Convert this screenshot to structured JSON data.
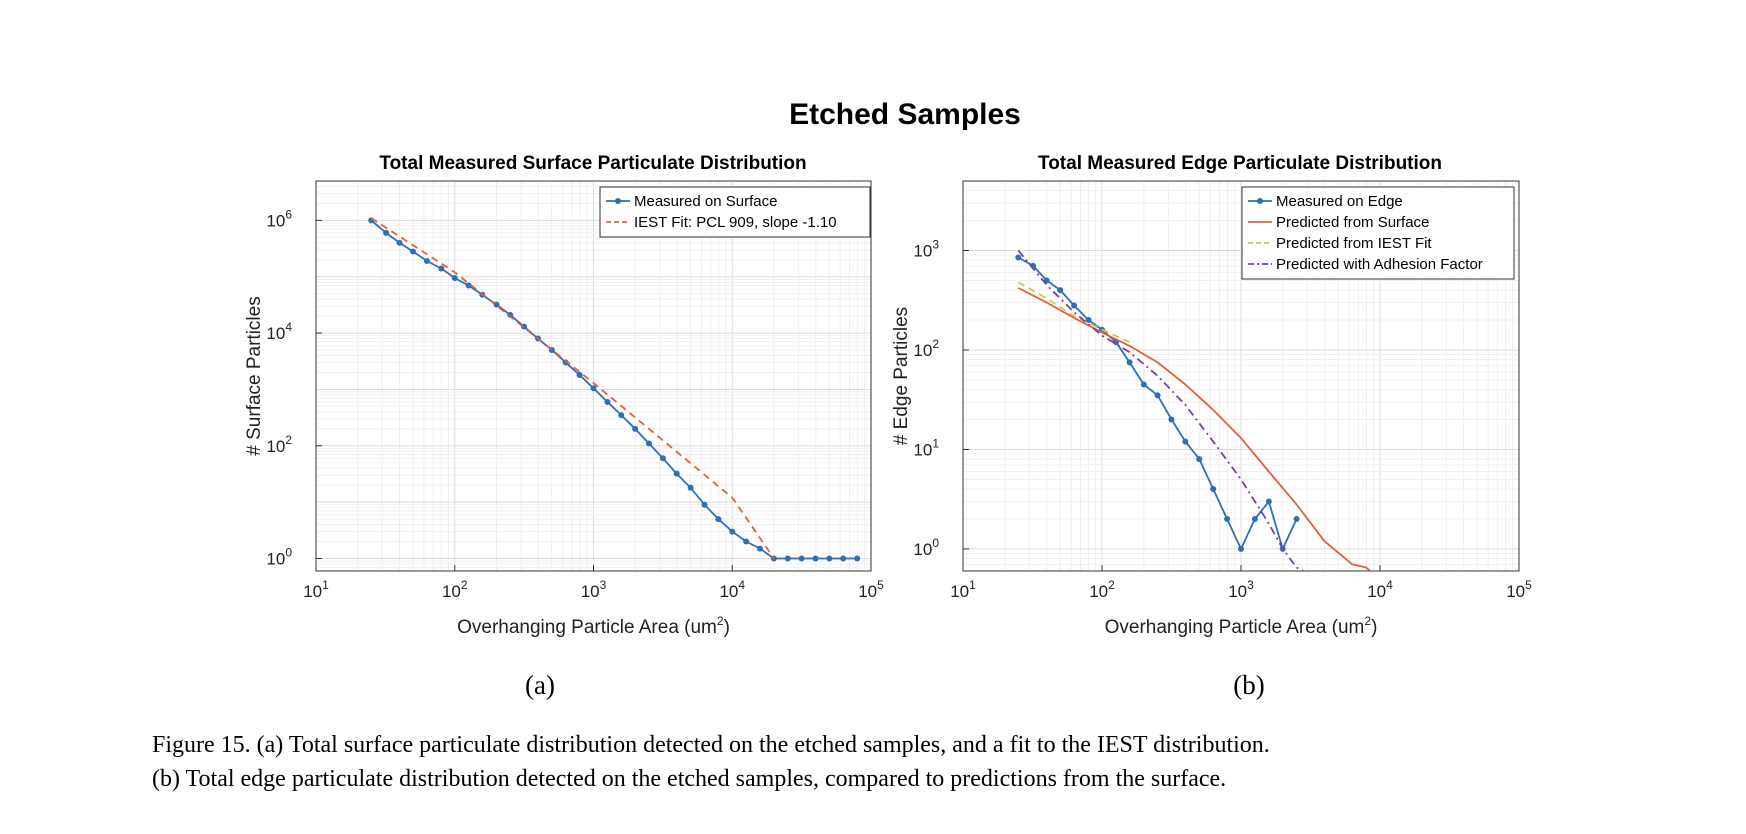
{
  "figure": {
    "suptitle": "Etched Samples",
    "subfig_labels": [
      "(a)",
      "(b)"
    ],
    "caption": [
      "Figure 15. (a) Total surface particulate distribution detected on the etched samples, and a fit to the IEST distribution.",
      "(b) Total edge particulate distribution detected on the etched samples, compared to predictions from the surface."
    ]
  },
  "chart_data": [
    {
      "type": "line",
      "title": "Total Measured Surface Particulate Distribution",
      "xlabel": "Overhanging Particle Area (um",
      "xlabel_sup": "2",
      "xlabel_end": ")",
      "ylabel": "# Surface Particles",
      "xscale": "log",
      "yscale": "log",
      "xlim": [
        10,
        100000
      ],
      "ylim": [
        0.6,
        5000000
      ],
      "xticks": [
        {
          "base": "10",
          "exp": "1",
          "value": 10
        },
        {
          "base": "10",
          "exp": "2",
          "value": 100
        },
        {
          "base": "10",
          "exp": "3",
          "value": 1000
        },
        {
          "base": "10",
          "exp": "4",
          "value": 10000
        },
        {
          "base": "10",
          "exp": "5",
          "value": 100000
        }
      ],
      "yticks": [
        {
          "base": "10",
          "exp": "0",
          "value": 1
        },
        {
          "base": "10",
          "exp": "2",
          "value": 100
        },
        {
          "base": "10",
          "exp": "4",
          "value": 10000
        },
        {
          "base": "10",
          "exp": "6",
          "value": 1000000
        }
      ],
      "grid": true,
      "legend_position": "top-right",
      "series": [
        {
          "name": "Measured on Surface",
          "color": "#2e6fb5",
          "style": "line-markers",
          "x": [
            25,
            32,
            40,
            50,
            63,
            80,
            100,
            126,
            158,
            200,
            251,
            316,
            398,
            501,
            631,
            794,
            1000,
            1259,
            1585,
            1995,
            2512,
            3162,
            3981,
            5012,
            6310,
            7943,
            10000,
            12589,
            15849,
            19953,
            25119,
            31623,
            39811,
            50119,
            63096,
            79433
          ],
          "y": [
            1000000,
            600000,
            400000,
            280000,
            190000,
            140000,
            95000,
            70000,
            48000,
            32000,
            21000,
            13000,
            8000,
            5000,
            3000,
            1800,
            1050,
            600,
            350,
            200,
            110,
            60,
            32,
            18,
            9,
            5,
            3,
            2,
            1.5,
            1,
            1,
            1,
            1,
            1,
            1,
            1
          ]
        },
        {
          "name": "IEST Fit: PCL 909, slope -1.10",
          "color": "#e0603a",
          "style": "dashed",
          "x": [
            25,
            100,
            1000,
            10000,
            20000
          ],
          "y": [
            1100000,
            120000,
            1300,
            12,
            1
          ]
        }
      ]
    },
    {
      "type": "line",
      "title": "Total Measured Edge Particulate Distribution",
      "xlabel": "Overhanging Particle Area (um",
      "xlabel_sup": "2",
      "xlabel_end": ")",
      "ylabel": "# Edge Particles",
      "xscale": "log",
      "yscale": "log",
      "xlim": [
        10,
        100000
      ],
      "ylim": [
        0.6,
        5000
      ],
      "xticks": [
        {
          "base": "10",
          "exp": "1",
          "value": 10
        },
        {
          "base": "10",
          "exp": "2",
          "value": 100
        },
        {
          "base": "10",
          "exp": "3",
          "value": 1000
        },
        {
          "base": "10",
          "exp": "4",
          "value": 10000
        },
        {
          "base": "10",
          "exp": "5",
          "value": 100000
        }
      ],
      "yticks": [
        {
          "base": "10",
          "exp": "0",
          "value": 1
        },
        {
          "base": "10",
          "exp": "1",
          "value": 10
        },
        {
          "base": "10",
          "exp": "2",
          "value": 100
        },
        {
          "base": "10",
          "exp": "3",
          "value": 1000
        }
      ],
      "grid": true,
      "legend_position": "top-right",
      "series": [
        {
          "name": "Measured on Edge",
          "color": "#2e6fb5",
          "style": "line-markers",
          "x": [
            25,
            32,
            40,
            50,
            63,
            80,
            100,
            126,
            158,
            200,
            251,
            316,
            398,
            501,
            631,
            794,
            1000,
            1259,
            1585,
            1995,
            2512
          ],
          "y": [
            850,
            700,
            500,
            400,
            280,
            200,
            160,
            120,
            75,
            45,
            35,
            20,
            12,
            8,
            4,
            2,
            1,
            2,
            3,
            1,
            2
          ]
        },
        {
          "name": "Predicted from Surface",
          "color": "#e0603a",
          "style": "solid",
          "x": [
            25,
            40,
            63,
            100,
            158,
            251,
            398,
            631,
            1000,
            1585,
            2512,
            3981,
            6310,
            7943,
            8500
          ],
          "y": [
            420,
            300,
            210,
            150,
            110,
            75,
            45,
            25,
            13,
            6,
            2.8,
            1.2,
            0.7,
            0.65,
            0.6
          ]
        },
        {
          "name": "Predicted from IEST Fit",
          "color": "#c9cc4a",
          "style": "dashed",
          "x": [
            25,
            40,
            63,
            100,
            158
          ],
          "y": [
            480,
            330,
            220,
            160,
            120
          ]
        },
        {
          "name": "Predicted with Adhesion Factor",
          "color": "#7b3f9e",
          "style": "dashdot",
          "x": [
            25,
            40,
            63,
            100,
            158,
            251,
            398,
            631,
            1000,
            1585,
            2000,
            2512,
            2800
          ],
          "y": [
            1000,
            450,
            240,
            140,
            95,
            55,
            28,
            12,
            5,
            1.8,
            1,
            0.65,
            0.6
          ]
        }
      ]
    }
  ]
}
